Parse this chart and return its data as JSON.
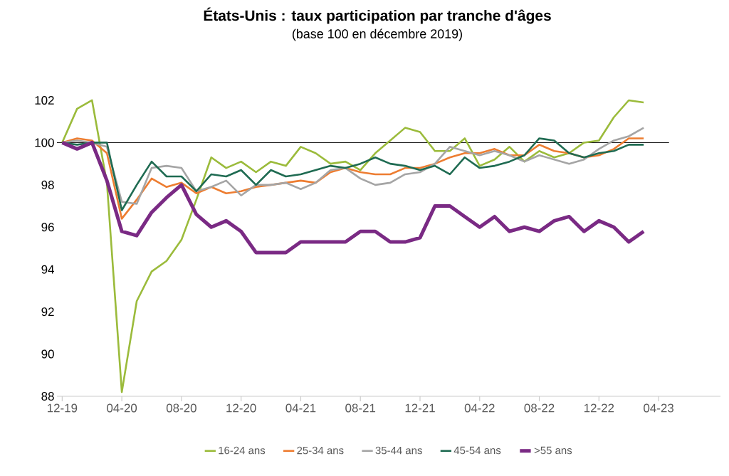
{
  "chart_data": {
    "type": "line",
    "title": "États-Unis : taux participation par tranche d'âges",
    "subtitle": "(base 100 en décembre 2019)",
    "categories": [
      "12-19",
      null,
      null,
      null,
      "04-20",
      null,
      null,
      null,
      "08-20",
      null,
      null,
      null,
      "12-20",
      null,
      null,
      null,
      "04-21",
      null,
      null,
      null,
      "08-21",
      null,
      null,
      null,
      "12-21",
      null,
      null,
      null,
      "04-22",
      null,
      null,
      null,
      "08-22",
      null,
      null,
      null,
      "12-22",
      null,
      null,
      null,
      "04-23"
    ],
    "ylim": [
      88,
      102
    ],
    "yticks": [
      88,
      90,
      92,
      94,
      96,
      98,
      100,
      102
    ],
    "ref_lines": [
      {
        "axis": "y",
        "value": 100,
        "color": "#000000"
      }
    ],
    "legend": "bottom",
    "grid": false,
    "marker": "none",
    "series": [
      {
        "name": "16-24 ans",
        "color": "#9bbb3b",
        "values": [
          100,
          101.6,
          102.0,
          98.1,
          88.2,
          92.5,
          93.9,
          94.4,
          95.4,
          97.3,
          99.3,
          98.8,
          99.1,
          98.6,
          99.1,
          98.9,
          99.8,
          99.5,
          99.0,
          99.1,
          98.7,
          99.5,
          100.1,
          100.7,
          100.5,
          99.6,
          99.6,
          100.2,
          98.9,
          99.2,
          99.8,
          99.1,
          99.6,
          99.3,
          99.5,
          100.0,
          100.1,
          101.2,
          102.0,
          101.9,
          null
        ]
      },
      {
        "name": "25-34 ans",
        "color": "#ed7d31",
        "values": [
          100,
          100.2,
          100.1,
          99.5,
          96.4,
          97.3,
          98.3,
          97.9,
          98.1,
          97.6,
          97.9,
          97.6,
          97.7,
          97.9,
          98.0,
          98.1,
          98.2,
          98.1,
          98.6,
          98.8,
          98.6,
          98.5,
          98.5,
          98.8,
          98.8,
          99.0,
          99.3,
          99.5,
          99.5,
          99.7,
          99.4,
          99.4,
          99.9,
          99.6,
          99.5,
          99.3,
          99.4,
          99.7,
          100.2,
          100.2,
          null
        ]
      },
      {
        "name": "35-44 ans",
        "color": "#a5a5a5",
        "values": [
          100,
          100.1,
          100.0,
          99.8,
          97.2,
          97.1,
          98.8,
          98.9,
          98.8,
          97.7,
          97.9,
          98.2,
          97.5,
          98.0,
          98.0,
          98.1,
          97.8,
          98.1,
          98.7,
          98.8,
          98.3,
          98.0,
          98.1,
          98.5,
          98.6,
          99.0,
          99.8,
          99.6,
          99.4,
          99.6,
          99.4,
          99.1,
          99.4,
          99.2,
          99.0,
          99.2,
          99.7,
          100.1,
          100.3,
          100.7,
          null
        ]
      },
      {
        "name": "45-54 ans",
        "color": "#1f6b52",
        "values": [
          100,
          99.9,
          100,
          100,
          96.8,
          98.0,
          99.1,
          98.4,
          98.4,
          97.7,
          98.5,
          98.4,
          98.7,
          98.0,
          98.7,
          98.4,
          98.5,
          98.7,
          98.9,
          98.8,
          99.0,
          99.3,
          99.0,
          98.9,
          98.7,
          98.9,
          98.5,
          99.3,
          98.8,
          98.9,
          99.1,
          99.4,
          100.2,
          100.1,
          99.5,
          99.3,
          99.5,
          99.6,
          99.9,
          99.9,
          null
        ]
      },
      {
        "name": ">55 ans",
        "color": "#7a2a84",
        "values": [
          100,
          99.7,
          100,
          98.2,
          95.8,
          95.6,
          96.7,
          97.4,
          98.0,
          96.6,
          96.0,
          96.3,
          95.8,
          94.8,
          94.8,
          94.8,
          95.3,
          95.3,
          95.3,
          95.3,
          95.8,
          95.8,
          95.3,
          95.3,
          95.5,
          97.0,
          97.0,
          96.5,
          96.0,
          96.5,
          95.8,
          96.0,
          95.8,
          96.3,
          96.5,
          95.8,
          96.3,
          96.0,
          95.3,
          95.8,
          null
        ]
      }
    ]
  }
}
